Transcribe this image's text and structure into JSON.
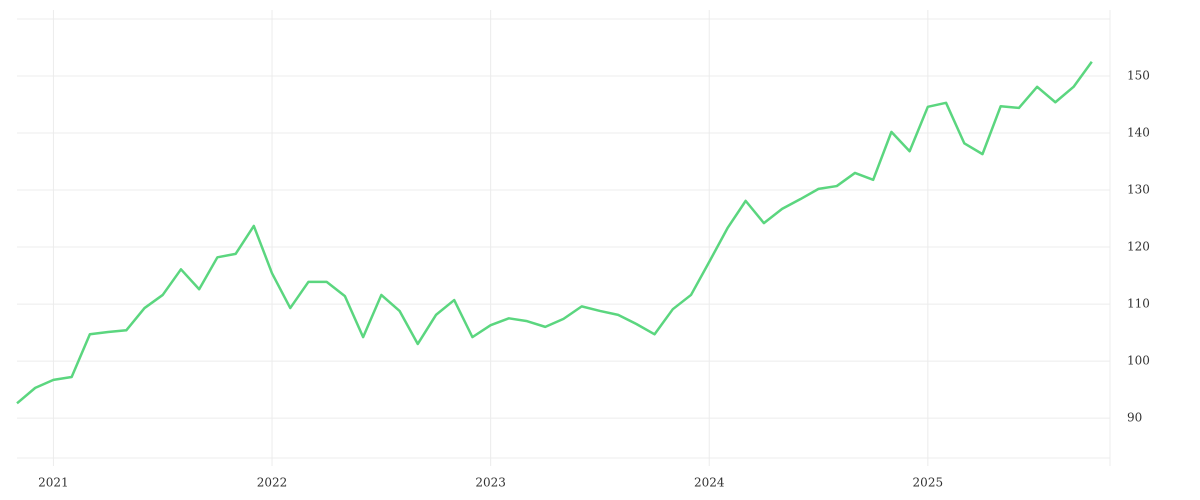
{
  "chart_data": {
    "type": "line",
    "x": [
      "2020-11",
      "2020-12",
      "2021-01",
      "2021-02",
      "2021-03",
      "2021-04",
      "2021-05",
      "2021-06",
      "2021-07",
      "2021-08",
      "2021-09",
      "2021-10",
      "2021-11",
      "2021-12",
      "2022-01",
      "2022-02",
      "2022-03",
      "2022-04",
      "2022-05",
      "2022-06",
      "2022-07",
      "2022-08",
      "2022-09",
      "2022-10",
      "2022-11",
      "2022-12",
      "2023-01",
      "2023-02",
      "2023-03",
      "2023-04",
      "2023-05",
      "2023-06",
      "2023-07",
      "2023-08",
      "2023-09",
      "2023-10",
      "2023-11",
      "2023-12",
      "2024-01",
      "2024-02",
      "2024-03",
      "2024-04",
      "2024-05",
      "2024-06",
      "2024-07",
      "2024-08",
      "2024-09",
      "2024-10",
      "2024-11",
      "2024-12",
      "2025-01",
      "2025-02",
      "2025-03",
      "2025-04",
      "2025-05",
      "2025-06",
      "2025-07",
      "2025-08",
      "2025-09",
      "2025-10"
    ],
    "series": [
      {
        "color": "#5bd67f",
        "values": [
          92.6,
          95.3,
          96.7,
          97.2,
          104.7,
          105.1,
          105.4,
          109.3,
          111.6,
          116.1,
          112.6,
          118.2,
          118.8,
          123.7,
          115.4,
          109.3,
          113.9,
          113.9,
          111.4,
          104.2,
          111.6,
          108.8,
          103.0,
          108.1,
          110.7,
          104.2,
          106.3,
          107.5,
          107.0,
          106.0,
          107.4,
          109.6,
          108.8,
          108.1,
          106.5,
          104.7,
          109.1,
          111.6,
          117.4,
          123.3,
          128.1,
          124.2,
          126.7,
          128.4,
          130.2,
          130.7,
          133.0,
          131.8,
          140.2,
          136.8,
          144.6,
          145.3,
          138.2,
          136.3,
          144.7,
          144.4,
          148.1,
          145.4,
          148.1,
          152.5
        ]
      }
    ],
    "xlim": [
      "2020-11",
      "2025-11"
    ],
    "xticks": [
      2021,
      2022,
      2023,
      2024,
      2025
    ],
    "ylim": [
      83,
      160
    ],
    "yticks": [
      90,
      100,
      110,
      120,
      130,
      140,
      150
    ],
    "grid": true
  }
}
